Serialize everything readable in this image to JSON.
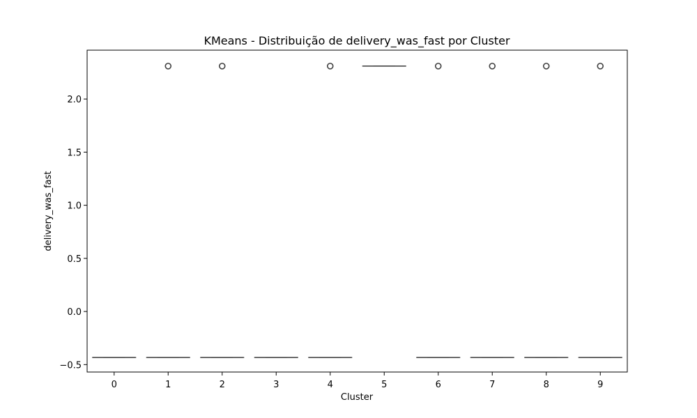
{
  "chart_data": {
    "type": "box",
    "title": "KMeans - Distribuição de delivery_was_fast por Cluster",
    "xlabel": "Cluster",
    "ylabel": "delivery_was_fast",
    "categories": [
      "0",
      "1",
      "2",
      "3",
      "4",
      "5",
      "6",
      "7",
      "8",
      "9"
    ],
    "yticks": [
      -0.5,
      0.0,
      0.5,
      1.0,
      1.5,
      2.0
    ],
    "ytick_labels": [
      "−0.5",
      "0.0",
      "0.5",
      "1.0",
      "1.5",
      "2.0"
    ],
    "ylim": [
      -0.57,
      2.46
    ],
    "grid": false,
    "boxes": [
      {
        "category": "0",
        "q1": -0.433,
        "median": -0.433,
        "q3": -0.433,
        "whisker_low": -0.433,
        "whisker_high": -0.433,
        "outliers": []
      },
      {
        "category": "1",
        "q1": -0.433,
        "median": -0.433,
        "q3": -0.433,
        "whisker_low": -0.433,
        "whisker_high": -0.433,
        "outliers": [
          2.31
        ]
      },
      {
        "category": "2",
        "q1": -0.433,
        "median": -0.433,
        "q3": -0.433,
        "whisker_low": -0.433,
        "whisker_high": -0.433,
        "outliers": [
          2.31
        ]
      },
      {
        "category": "3",
        "q1": -0.433,
        "median": -0.433,
        "q3": -0.433,
        "whisker_low": -0.433,
        "whisker_high": -0.433,
        "outliers": []
      },
      {
        "category": "4",
        "q1": -0.433,
        "median": -0.433,
        "q3": -0.433,
        "whisker_low": -0.433,
        "whisker_high": -0.433,
        "outliers": [
          2.31
        ]
      },
      {
        "category": "5",
        "q1": 2.31,
        "median": 2.31,
        "q3": 2.31,
        "whisker_low": 2.31,
        "whisker_high": 2.31,
        "outliers": []
      },
      {
        "category": "6",
        "q1": -0.433,
        "median": -0.433,
        "q3": -0.433,
        "whisker_low": -0.433,
        "whisker_high": -0.433,
        "outliers": [
          2.31
        ]
      },
      {
        "category": "7",
        "q1": -0.433,
        "median": -0.433,
        "q3": -0.433,
        "whisker_low": -0.433,
        "whisker_high": -0.433,
        "outliers": [
          2.31
        ]
      },
      {
        "category": "8",
        "q1": -0.433,
        "median": -0.433,
        "q3": -0.433,
        "whisker_low": -0.433,
        "whisker_high": -0.433,
        "outliers": [
          2.31
        ]
      },
      {
        "category": "9",
        "q1": -0.433,
        "median": -0.433,
        "q3": -0.433,
        "whisker_low": -0.433,
        "whisker_high": -0.433,
        "outliers": [
          2.31
        ]
      }
    ],
    "colors": {
      "box_line": "#3f3f3f",
      "axis": "#000000",
      "outlier_edge": "#3f3f3f"
    }
  }
}
